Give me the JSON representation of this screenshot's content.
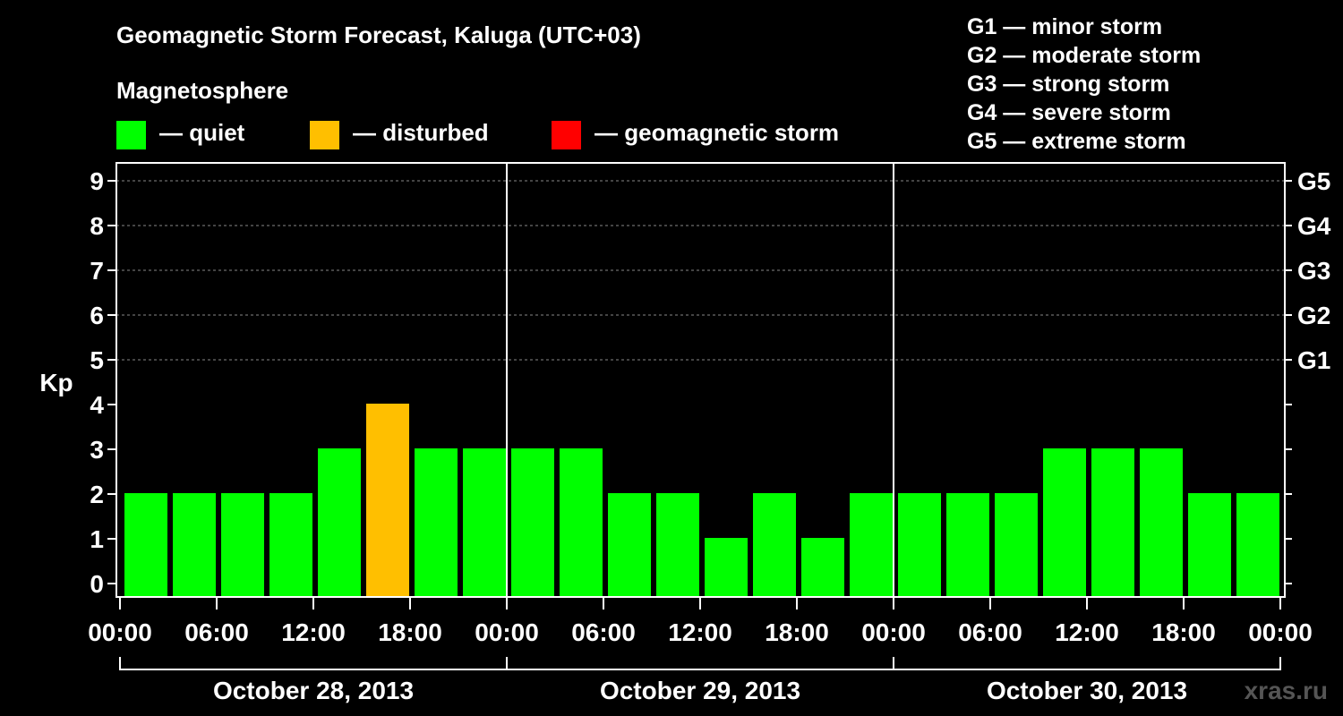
{
  "chart_data": {
    "type": "bar",
    "title": "Geomagnetic Storm Forecast, Kaluga (UTC+03)",
    "legend_title": "Magnetosphere",
    "legend": [
      {
        "label": "— quiet",
        "color": "#00ff00"
      },
      {
        "label": "— disturbed",
        "color": "#ffbf00"
      },
      {
        "label": "— geomagnetic storm",
        "color": "#ff0000"
      }
    ],
    "storm_scale": [
      "G1 — minor storm",
      "G2 — moderate storm",
      "G3 — strong storm",
      "G4 — severe storm",
      "G5 — extreme storm"
    ],
    "ylabel": "Kp",
    "ylim": [
      0,
      9
    ],
    "yticks": [
      "0",
      "1",
      "2",
      "3",
      "4",
      "5",
      "6",
      "7",
      "8",
      "9"
    ],
    "right_ticks": [
      {
        "kp": 5,
        "label": "G1"
      },
      {
        "kp": 6,
        "label": "G2"
      },
      {
        "kp": 7,
        "label": "G3"
      },
      {
        "kp": 8,
        "label": "G4"
      },
      {
        "kp": 9,
        "label": "G5"
      }
    ],
    "grid_kp": [
      5,
      6,
      7,
      8,
      9
    ],
    "x_time_labels": [
      "00:00",
      "06:00",
      "12:00",
      "18:00",
      "00:00",
      "06:00",
      "12:00",
      "18:00",
      "00:00",
      "06:00",
      "12:00",
      "18:00",
      "00:00"
    ],
    "days": [
      "October 28, 2013",
      "October 29, 2013",
      "October 30, 2013"
    ],
    "interval_hours": 3,
    "values": [
      2,
      2,
      2,
      2,
      3,
      4,
      3,
      3,
      3,
      3,
      2,
      2,
      1,
      2,
      1,
      2,
      2,
      2,
      2,
      3,
      3,
      3,
      2,
      2
    ],
    "colors": {
      "quiet": "#00ff00",
      "disturbed": "#ffbf00",
      "storm": "#ff0000"
    },
    "watermark": "xras.ru"
  }
}
